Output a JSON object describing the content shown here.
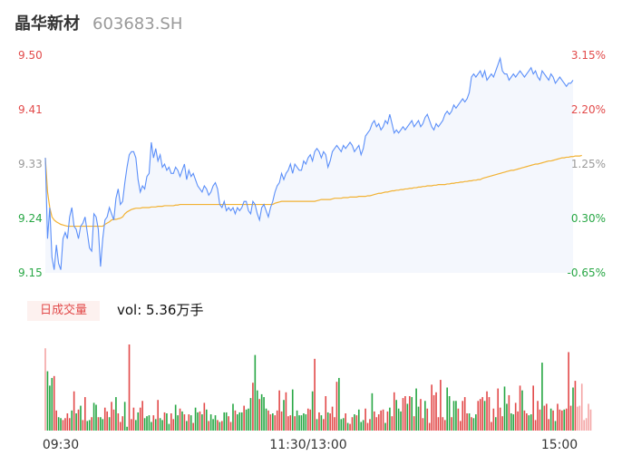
{
  "header": {
    "name": "晶华新材",
    "code": "603683.SH"
  },
  "volume_panel": {
    "tag_label": "日成交量",
    "readout_prefix": "vol: ",
    "readout_value": "5.36万手"
  },
  "colors": {
    "price_line": "#5b8ff9",
    "avg_line": "#f2b233",
    "up": "#e24a4a",
    "down": "#28a745",
    "neutral": "#999999",
    "area_fill": "#f4f7fd"
  },
  "chart_data": {
    "type": "line",
    "title": "",
    "xlabel": "",
    "ylabel": "",
    "ylim": [
      9.15,
      9.5
    ],
    "prev_close": 9.21,
    "y_ticks_left": [
      "9.50",
      "9.41",
      "9.33",
      "9.24",
      "9.15"
    ],
    "y_ticks_right": [
      "3.15%",
      "2.20%",
      "1.25%",
      "0.30%",
      "-0.65%"
    ],
    "x_ticks": [
      "09:30",
      "11:30/13:00",
      "15:00"
    ],
    "session_points": 240,
    "price": [
      9.335,
      9.205,
      9.255,
      9.175,
      9.155,
      9.195,
      9.165,
      9.155,
      9.205,
      9.215,
      9.205,
      9.24,
      9.255,
      9.225,
      9.22,
      9.205,
      9.225,
      9.23,
      9.24,
      9.215,
      9.19,
      9.185,
      9.245,
      9.24,
      9.22,
      9.16,
      9.205,
      9.235,
      9.24,
      9.255,
      9.245,
      9.235,
      9.27,
      9.285,
      9.26,
      9.265,
      9.295,
      9.32,
      9.34,
      9.345,
      9.345,
      9.335,
      9.3,
      9.28,
      9.29,
      9.285,
      9.305,
      9.31,
      9.36,
      9.335,
      9.35,
      9.33,
      9.34,
      9.32,
      9.325,
      9.315,
      9.32,
      9.31,
      9.31,
      9.32,
      9.315,
      9.305,
      9.315,
      9.325,
      9.3,
      9.315,
      9.305,
      9.31,
      9.3,
      9.29,
      9.285,
      9.28,
      9.29,
      9.285,
      9.275,
      9.28,
      9.29,
      9.295,
      9.285,
      9.26,
      9.255,
      9.265,
      9.25,
      9.255,
      9.25,
      9.255,
      9.245,
      9.255,
      9.25,
      9.255,
      9.265,
      9.265,
      9.25,
      9.245,
      9.265,
      9.26,
      9.245,
      9.235,
      9.255,
      9.26,
      9.25,
      9.24,
      9.255,
      9.265,
      9.28,
      9.29,
      9.295,
      9.31,
      9.3,
      9.31,
      9.315,
      9.325,
      9.31,
      9.325,
      9.32,
      9.315,
      9.315,
      9.33,
      9.325,
      9.335,
      9.34,
      9.33,
      9.345,
      9.35,
      9.345,
      9.335,
      9.345,
      9.34,
      9.32,
      9.33,
      9.345,
      9.35,
      9.355,
      9.35,
      9.345,
      9.355,
      9.35,
      9.355,
      9.36,
      9.355,
      9.345,
      9.35,
      9.355,
      9.34,
      9.35,
      9.37,
      9.375,
      9.38,
      9.39,
      9.395,
      9.385,
      9.39,
      9.38,
      9.385,
      9.395,
      9.39,
      9.405,
      9.39,
      9.375,
      9.38,
      9.375,
      9.38,
      9.385,
      9.38,
      9.385,
      9.39,
      9.395,
      9.385,
      9.39,
      9.395,
      9.385,
      9.39,
      9.4,
      9.405,
      9.395,
      9.385,
      9.38,
      9.39,
      9.385,
      9.39,
      9.395,
      9.405,
      9.41,
      9.405,
      9.41,
      9.42,
      9.415,
      9.42,
      9.425,
      9.43,
      9.425,
      9.43,
      9.44,
      9.465,
      9.47,
      9.465,
      9.47,
      9.475,
      9.465,
      9.475,
      9.46,
      9.465,
      9.47,
      9.465,
      9.475,
      9.485,
      9.495,
      9.475,
      9.47,
      9.47,
      9.46,
      9.465,
      9.47,
      9.465,
      9.47,
      9.475,
      9.47,
      9.465,
      9.47,
      9.475,
      9.48,
      9.47,
      9.475,
      9.465,
      9.46,
      9.475,
      9.47,
      9.465,
      9.46,
      9.47,
      9.465,
      9.455,
      9.46,
      9.465,
      9.46,
      9.455,
      9.45,
      9.455,
      9.455,
      9.46
    ],
    "avg_price": [
      9.335,
      9.28,
      9.255,
      9.24,
      9.235,
      9.232,
      9.23,
      9.228,
      9.227,
      9.226,
      9.225,
      9.225,
      9.225,
      9.225,
      9.225,
      9.225,
      9.225,
      9.225,
      9.225,
      9.225,
      9.225,
      9.225,
      9.225,
      9.225,
      9.225,
      9.225,
      9.225,
      9.228,
      9.23,
      9.232,
      9.235,
      9.236,
      9.236,
      9.237,
      9.238,
      9.24,
      9.245,
      9.248,
      9.25,
      9.252,
      9.253,
      9.254,
      9.254,
      9.254,
      9.255,
      9.255,
      9.255,
      9.255,
      9.256,
      9.256,
      9.256,
      9.257,
      9.257,
      9.257,
      9.258,
      9.258,
      9.258,
      9.258,
      9.258,
      9.259,
      9.259,
      9.26,
      9.26,
      9.26,
      9.26,
      9.26,
      9.26,
      9.26,
      9.26,
      9.26,
      9.26,
      9.26,
      9.26,
      9.26,
      9.26,
      9.26,
      9.26,
      9.26,
      9.26,
      9.26,
      9.26,
      9.26,
      9.26,
      9.26,
      9.26,
      9.26,
      9.26,
      9.26,
      9.26,
      9.26,
      9.26,
      9.26,
      9.26,
      9.26,
      9.26,
      9.26,
      9.26,
      9.26,
      9.26,
      9.26,
      9.26,
      9.26,
      9.26,
      9.26,
      9.262,
      9.263,
      9.264,
      9.265,
      9.265,
      9.265,
      9.265,
      9.265,
      9.265,
      9.265,
      9.265,
      9.265,
      9.265,
      9.265,
      9.265,
      9.265,
      9.265,
      9.265,
      9.265,
      9.266,
      9.267,
      9.268,
      9.268,
      9.268,
      9.268,
      9.268,
      9.269,
      9.27,
      9.27,
      9.27,
      9.27,
      9.271,
      9.271,
      9.271,
      9.272,
      9.272,
      9.272,
      9.272,
      9.273,
      9.273,
      9.273,
      9.273,
      9.274,
      9.274,
      9.275,
      9.276,
      9.277,
      9.278,
      9.278,
      9.279,
      9.28,
      9.28,
      9.281,
      9.282,
      9.282,
      9.283,
      9.283,
      9.284,
      9.284,
      9.285,
      9.285,
      9.286,
      9.286,
      9.287,
      9.287,
      9.288,
      9.288,
      9.289,
      9.289,
      9.29,
      9.29,
      9.29,
      9.291,
      9.291,
      9.292,
      9.292,
      9.292,
      9.292,
      9.293,
      9.293,
      9.294,
      9.294,
      9.295,
      9.295,
      9.296,
      9.296,
      9.297,
      9.297,
      9.298,
      9.298,
      9.299,
      9.299,
      9.3,
      9.3,
      9.302,
      9.303,
      9.304,
      9.305,
      9.306,
      9.307,
      9.308,
      9.309,
      9.31,
      9.311,
      9.312,
      9.313,
      9.314,
      9.315,
      9.315,
      9.316,
      9.317,
      9.318,
      9.319,
      9.32,
      9.321,
      9.322,
      9.323,
      9.324,
      9.325,
      9.325,
      9.326,
      9.327,
      9.328,
      9.329,
      9.33,
      9.33,
      9.331,
      9.332,
      9.333,
      9.334,
      9.335,
      9.335,
      9.336,
      9.336,
      9.337,
      9.337,
      9.338,
      9.338,
      9.338,
      9.339
    ],
    "volume_max": 90,
    "volume": [
      86,
      62,
      47,
      55,
      57,
      21,
      14,
      13,
      11,
      13,
      18,
      13,
      21,
      41,
      18,
      22,
      26,
      11,
      35,
      10,
      11,
      14,
      29,
      27,
      14,
      14,
      12,
      24,
      20,
      14,
      30,
      22,
      35,
      18,
      9,
      15,
      30,
      4,
      90,
      12,
      24,
      11,
      19,
      24,
      31,
      13,
      15,
      16,
      9,
      16,
      12,
      32,
      13,
      11,
      19,
      18,
      7,
      18,
      12,
      27,
      16,
      23,
      20,
      17,
      10,
      17,
      16,
      8,
      24,
      19,
      20,
      17,
      29,
      22,
      10,
      17,
      12,
      16,
      11,
      9,
      10,
      19,
      19,
      15,
      9,
      28,
      21,
      17,
      19,
      19,
      26,
      22,
      23,
      34,
      50,
      79,
      42,
      33,
      38,
      35,
      23,
      21,
      17,
      18,
      16,
      21,
      42,
      20,
      32,
      40,
      15,
      16,
      43,
      15,
      21,
      16,
      16,
      18,
      17,
      23,
      22,
      41,
      75,
      12,
      19,
      16,
      12,
      36,
      19,
      18,
      25,
      14,
      51,
      55,
      12,
      13,
      18,
      8,
      7,
      14,
      17,
      16,
      22,
      9,
      11,
      23,
      8,
      12,
      39,
      20,
      14,
      17,
      21,
      22,
      8,
      20,
      24,
      15,
      40,
      32,
      23,
      20,
      34,
      36,
      28,
      36,
      35,
      15,
      44,
      25,
      33,
      13,
      31,
      23,
      8,
      48,
      37,
      40,
      14,
      53,
      14,
      11,
      45,
      36,
      14,
      31,
      31,
      23,
      10,
      31,
      35,
      18,
      18,
      14,
      13,
      17,
      31,
      33,
      35,
      31,
      41,
      35,
      9,
      23,
      14,
      44,
      24,
      15,
      46,
      28,
      37,
      18,
      17,
      29,
      20,
      47,
      42,
      21,
      18,
      16,
      17,
      47,
      11,
      31,
      22,
      71,
      26,
      28,
      12,
      23,
      21,
      10,
      28,
      22,
      21,
      22,
      23,
      82,
      26,
      45,
      52,
      25,
      26,
      49,
      11,
      13,
      28,
      22
    ],
    "volume_dir": [
      "n",
      "d",
      "d",
      "d",
      "u",
      "u",
      "d",
      "d",
      "u",
      "u",
      "u",
      "u",
      "d",
      "u",
      "d",
      "u",
      "d",
      "u",
      "u",
      "d",
      "d",
      "u",
      "d",
      "d",
      "u",
      "d",
      "d",
      "u",
      "u",
      "d",
      "u",
      "u",
      "d",
      "u",
      "u",
      "u",
      "d",
      "d",
      "u",
      "u",
      "u",
      "d",
      "d",
      "u",
      "u",
      "d",
      "d",
      "d",
      "d",
      "u",
      "d",
      "u",
      "d",
      "d",
      "u",
      "d",
      "d",
      "u",
      "u",
      "d",
      "d",
      "u",
      "d",
      "u",
      "d",
      "u",
      "d",
      "u",
      "d",
      "d",
      "u",
      "d",
      "u",
      "d",
      "u",
      "d",
      "d",
      "d",
      "u",
      "d",
      "u",
      "d",
      "d",
      "u",
      "u",
      "d",
      "u",
      "d",
      "d",
      "d",
      "u",
      "d",
      "d",
      "d",
      "u",
      "d",
      "d",
      "u",
      "d",
      "d",
      "d",
      "u",
      "u",
      "d",
      "u",
      "u",
      "u",
      "u",
      "d",
      "u",
      "u",
      "u",
      "d",
      "u",
      "d",
      "d",
      "d",
      "d",
      "d",
      "u",
      "u",
      "d",
      "u",
      "d",
      "u",
      "d",
      "u",
      "u",
      "d",
      "u",
      "u",
      "u",
      "u",
      "d",
      "d",
      "d",
      "u",
      "d",
      "u",
      "u",
      "d",
      "u",
      "d",
      "d",
      "d",
      "u",
      "u",
      "u",
      "d",
      "u",
      "u",
      "u",
      "u",
      "u",
      "d",
      "u",
      "d",
      "u",
      "u",
      "d",
      "d",
      "d",
      "u",
      "u",
      "d",
      "u",
      "d",
      "u",
      "d",
      "d",
      "u",
      "u",
      "d",
      "u",
      "u",
      "u",
      "u",
      "u",
      "u",
      "u",
      "u",
      "u",
      "d",
      "d",
      "u",
      "d",
      "d",
      "u",
      "u",
      "u",
      "u",
      "u",
      "d",
      "u",
      "d",
      "d",
      "u",
      "u",
      "u",
      "d",
      "u",
      "u",
      "u",
      "u",
      "d",
      "u",
      "u",
      "u",
      "d",
      "d",
      "u",
      "d",
      "d",
      "u",
      "u",
      "u",
      "d",
      "u",
      "u",
      "d",
      "d",
      "u",
      "u",
      "u",
      "u",
      "d",
      "u",
      "u",
      "u",
      "d",
      "u",
      "d",
      "u",
      "u",
      "u",
      "d",
      "u",
      "u",
      "u",
      "d",
      "u",
      "n"
    ]
  }
}
